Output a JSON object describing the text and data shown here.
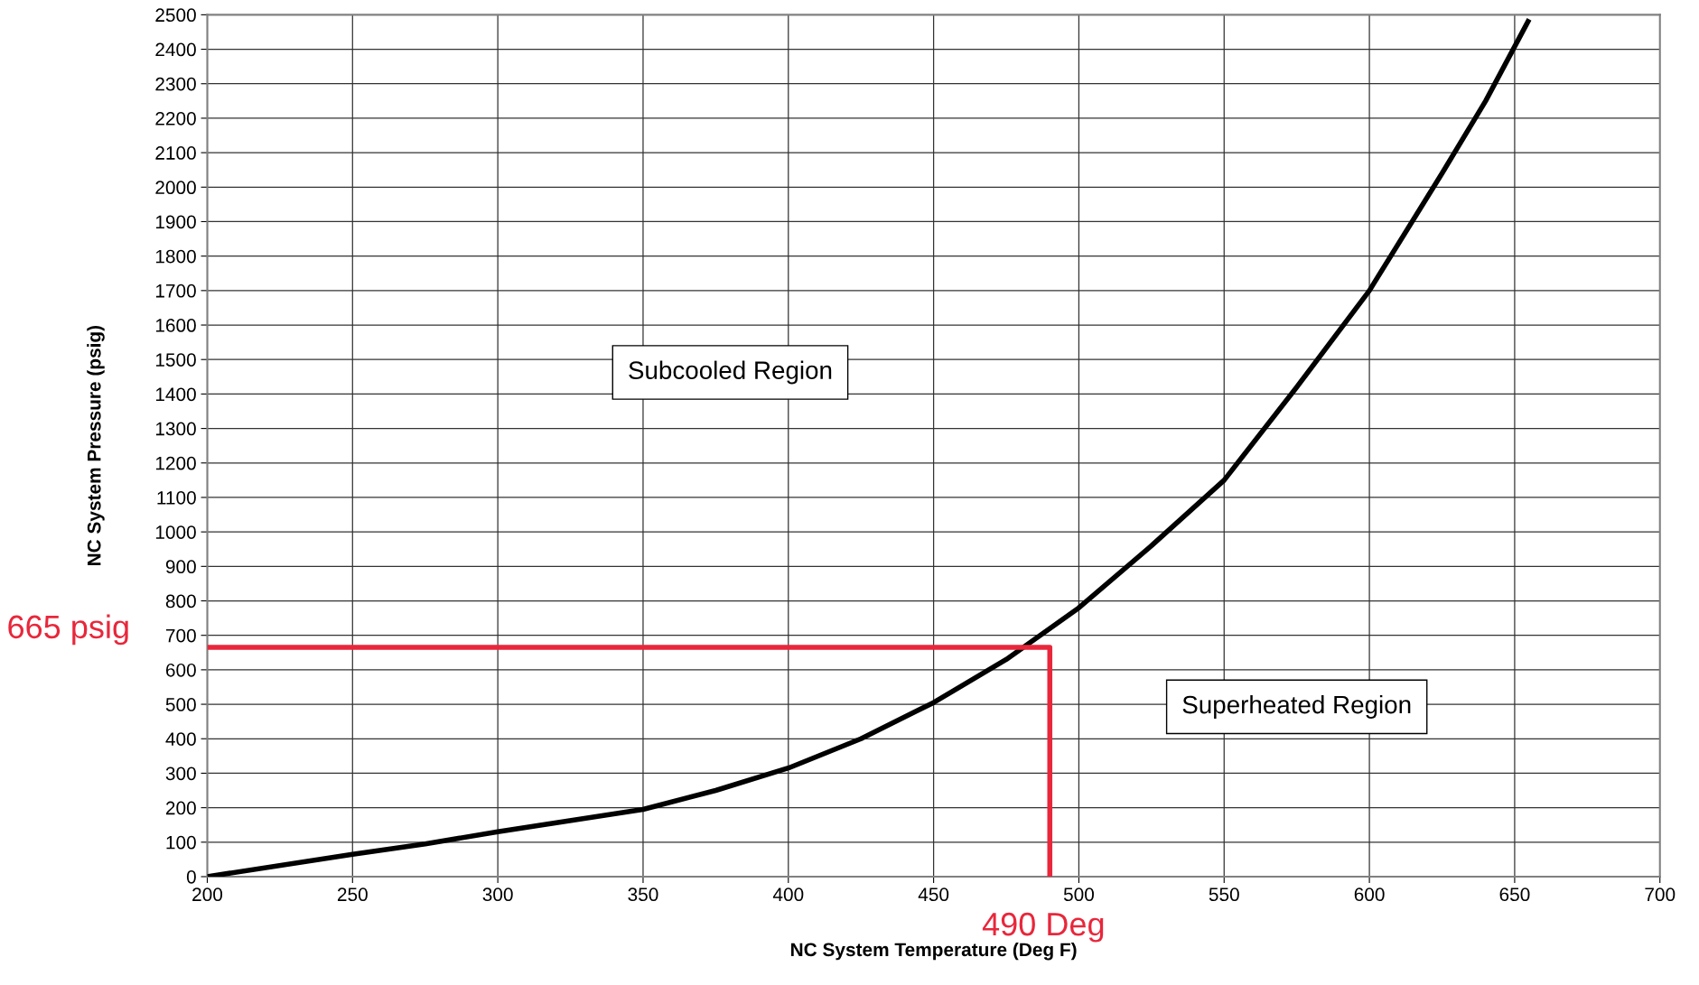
{
  "chart_data": {
    "type": "line",
    "xlabel": "NC System Temperature (Deg F)",
    "ylabel": "NC System Pressure (psig)",
    "xlim": [
      200,
      700
    ],
    "xticks": [
      200,
      250,
      300,
      350,
      400,
      450,
      500,
      550,
      600,
      650,
      700
    ],
    "ylim": [
      0,
      2500
    ],
    "yticks": [
      0,
      100,
      200,
      300,
      400,
      500,
      600,
      700,
      800,
      900,
      1000,
      1100,
      1200,
      1300,
      1400,
      1500,
      1600,
      1700,
      1800,
      1900,
      2000,
      2100,
      2200,
      2300,
      2400,
      2500
    ],
    "grid": true,
    "legend": false,
    "marker": "none",
    "line_style": "solid",
    "series": [
      {
        "color": "#000000",
        "x": [
          200,
          250,
          275,
          300,
          350,
          375,
          400,
          425,
          450,
          475,
          500,
          525,
          550,
          575,
          600,
          625,
          640,
          655
        ],
        "values": [
          0,
          65,
          95,
          130,
          195,
          250,
          315,
          400,
          505,
          630,
          780,
          960,
          1150,
          1420,
          1700,
          2040,
          2250,
          2487
        ]
      },
      {
        "color": "#e8273b",
        "x": [
          200,
          490,
          490
        ],
        "values": [
          665,
          665,
          0
        ]
      }
    ],
    "annotations": [
      "665 psig",
      "490 Deg",
      "Subcooled Region",
      "Superheated Region"
    ]
  }
}
